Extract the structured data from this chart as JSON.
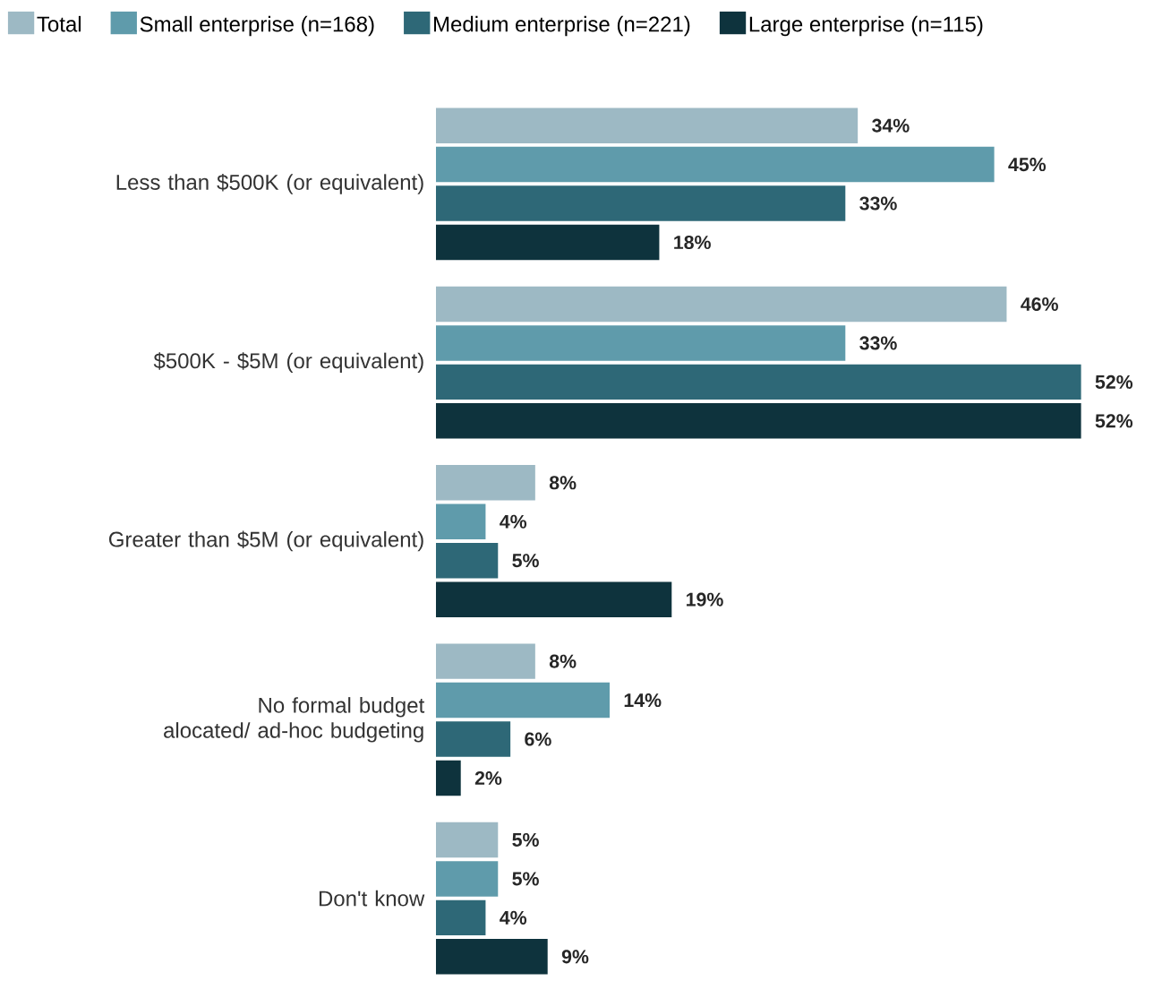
{
  "chart_data": {
    "type": "bar",
    "orientation": "horizontal",
    "legend": "top",
    "categories": [
      "Less than $500K (or equivalent)",
      "$500K - $5M (or equivalent)",
      "Greater than $5M (or equivalent)",
      "No formal budget alocated/ ad-hoc budgeting",
      "Don't know"
    ],
    "series": [
      {
        "name": "Total",
        "color": "#9db9c4",
        "values": [
          34,
          46,
          8,
          8,
          5
        ],
        "value_labels": [
          "34%",
          "46%",
          "8%",
          "8%",
          "5%"
        ]
      },
      {
        "name": "Small enterprise (n=168)",
        "color": "#5f9bab",
        "values": [
          45,
          33,
          4,
          14,
          5
        ],
        "value_labels": [
          "45%",
          "33%",
          "4%",
          "14%",
          "5%"
        ]
      },
      {
        "name": "Medium enterprise (n=221)",
        "color": "#2e6877",
        "values": [
          33,
          52,
          5,
          6,
          4
        ],
        "value_labels": [
          "33%",
          "52%",
          "5%",
          "6%",
          "4%"
        ]
      },
      {
        "name": "Large enterprise (n=115)",
        "color": "#0e333d",
        "values": [
          18,
          52,
          19,
          2,
          9
        ],
        "value_labels": [
          "18%",
          "52%",
          "19%",
          "2%",
          "9%"
        ]
      }
    ]
  }
}
